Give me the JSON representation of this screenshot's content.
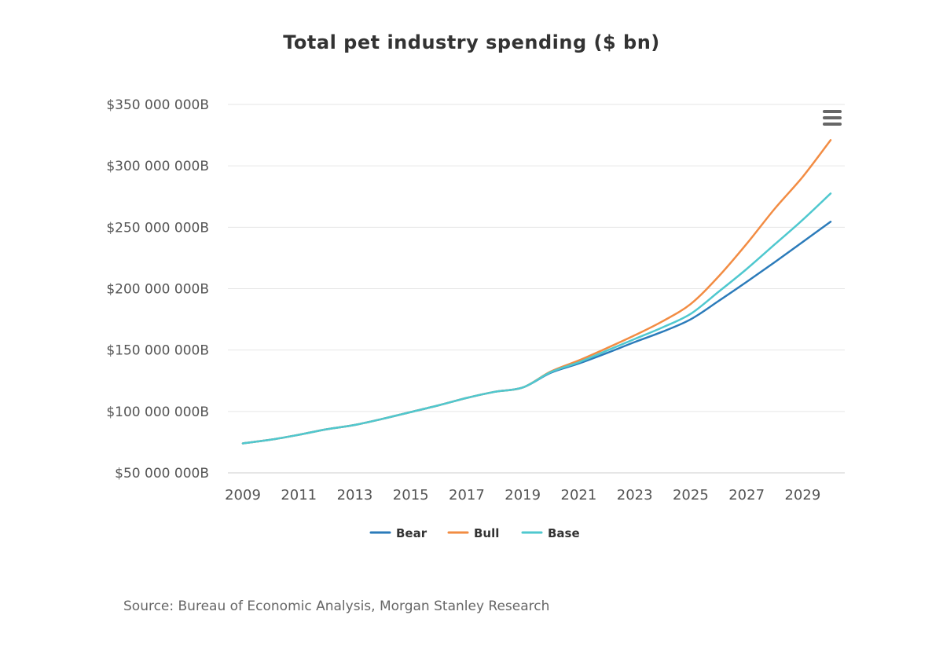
{
  "source_text": "Source: Bureau of Economic Analysis, Morgan Stanley Research",
  "menu_icon": "hamburger-menu-icon",
  "chart_data": {
    "type": "line",
    "title": "Total pet industry spending ($ bn)",
    "xlabel": "",
    "ylabel": "",
    "x": [
      2009,
      2010,
      2011,
      2012,
      2013,
      2014,
      2015,
      2016,
      2017,
      2018,
      2019,
      2020,
      2021,
      2022,
      2023,
      2024,
      2025,
      2026,
      2027,
      2028,
      2029,
      2030
    ],
    "xlim": [
      2009,
      2030
    ],
    "x_ticks": [
      2009,
      2011,
      2013,
      2015,
      2017,
      2019,
      2021,
      2023,
      2025,
      2027,
      2029
    ],
    "x_tick_labels": [
      "2009",
      "2011",
      "2013",
      "2015",
      "2017",
      "2019",
      "2021",
      "2023",
      "2025",
      "2027",
      "2029"
    ],
    "ylim": [
      50000000,
      350000000
    ],
    "y_ticks": [
      50000000,
      100000000,
      150000000,
      200000000,
      250000000,
      300000000,
      350000000
    ],
    "y_tick_labels": [
      "$50 000 000B",
      "$100 000 000B",
      "$150 000 000B",
      "$200 000 000B",
      "$250 000 000B",
      "$300 000 000B",
      "$350 000 000B"
    ],
    "grid": true,
    "legend": "bottom-center",
    "series": [
      {
        "name": "Bear",
        "color": "#2b7bba",
        "values": [
          74000000,
          77000000,
          81000000,
          85500000,
          89000000,
          94000000,
          99500000,
          105000000,
          111000000,
          116000000,
          119500000,
          131500000,
          139000000,
          147500000,
          156500000,
          165000000,
          175000000,
          190000000,
          205500000,
          221500000,
          238000000,
          254500000
        ]
      },
      {
        "name": "Bull",
        "color": "#f28c43",
        "values": [
          74000000,
          77000000,
          81000000,
          85500000,
          89000000,
          94000000,
          99500000,
          105000000,
          111000000,
          116000000,
          119500000,
          132500000,
          141500000,
          151500000,
          162000000,
          173500000,
          187500000,
          210000000,
          236500000,
          265000000,
          291000000,
          321000000
        ]
      },
      {
        "name": "Base",
        "color": "#4fc8cf",
        "values": [
          74000000,
          77000000,
          81000000,
          85500000,
          89000000,
          94000000,
          99500000,
          105000000,
          111000000,
          116000000,
          119500000,
          132000000,
          140000000,
          149500000,
          159000000,
          168500000,
          179500000,
          197500000,
          216000000,
          236000000,
          256000000,
          277500000
        ]
      }
    ]
  }
}
